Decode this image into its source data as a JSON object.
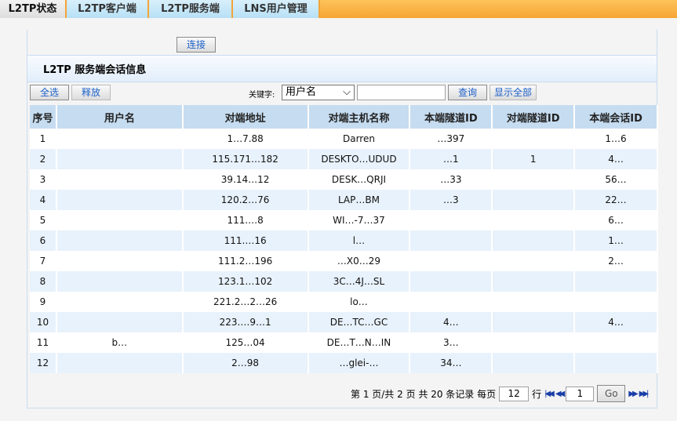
{
  "tabs": [
    {
      "label": "L2TP状态",
      "active": true
    },
    {
      "label": "L2TP客户端"
    },
    {
      "label": "L2TP服务端"
    },
    {
      "label": "LNS用户管理"
    }
  ],
  "connect_label": "连接",
  "section_title": "L2TP 服务端会话信息",
  "toolbar": {
    "select_all": "全选",
    "release": "释放",
    "keyword_label": "关键字:",
    "keyword_select": "用户名",
    "keyword_value": "",
    "search": "查询",
    "show_all": "显示全部"
  },
  "table": {
    "headers": [
      "序号",
      "用户名",
      "对端地址",
      "对端主机名称",
      "本端隧道ID",
      "对端隧道ID",
      "本端会话ID"
    ],
    "rows": [
      [
        "1",
        "",
        "1…7.88",
        "Darren",
        "…397",
        "",
        "1…6"
      ],
      [
        "2",
        "",
        "115.171…182",
        "DESKTO…UDUD",
        "…1",
        "1",
        "4…"
      ],
      [
        "3",
        "",
        "39.14…12",
        "DESK…QRJI",
        "…33",
        "",
        "56…"
      ],
      [
        "4",
        "",
        "120.2…76",
        "LAP…BM",
        "…3",
        "",
        "22…"
      ],
      [
        "5",
        "",
        "111.…8",
        "WI…-7…37",
        "",
        "",
        "6…"
      ],
      [
        "6",
        "",
        "111.…16",
        "l…",
        "",
        "",
        "1…"
      ],
      [
        "7",
        "",
        "111.2…196",
        "…X0…29",
        "",
        "",
        "2…"
      ],
      [
        "8",
        "",
        "123.1…102",
        "3C…4J…SL",
        "",
        "",
        ""
      ],
      [
        "9",
        "",
        "221.2…2…26",
        "lo…",
        "",
        "",
        ""
      ],
      [
        "10",
        "",
        "223.…9…1",
        "DE…TC…GC",
        "4…",
        "",
        "4…"
      ],
      [
        "11",
        "b…",
        "125…04",
        "DE…T…N…IN",
        "3…",
        "",
        ""
      ],
      [
        "12",
        "",
        "2…98",
        "…glei-…",
        "34…",
        "",
        ""
      ]
    ]
  },
  "pager": {
    "text": "第 1 页/共 2 页 共 20 条记录 每页",
    "per_page": "12",
    "rows_label": "行",
    "page_input": "1",
    "go": "Go"
  },
  "colors": {
    "tab_bar": "#f7a534",
    "header_bg": "#c6dcf0",
    "alt_row": "#e8f2fc",
    "link": "#1b5fc9"
  }
}
